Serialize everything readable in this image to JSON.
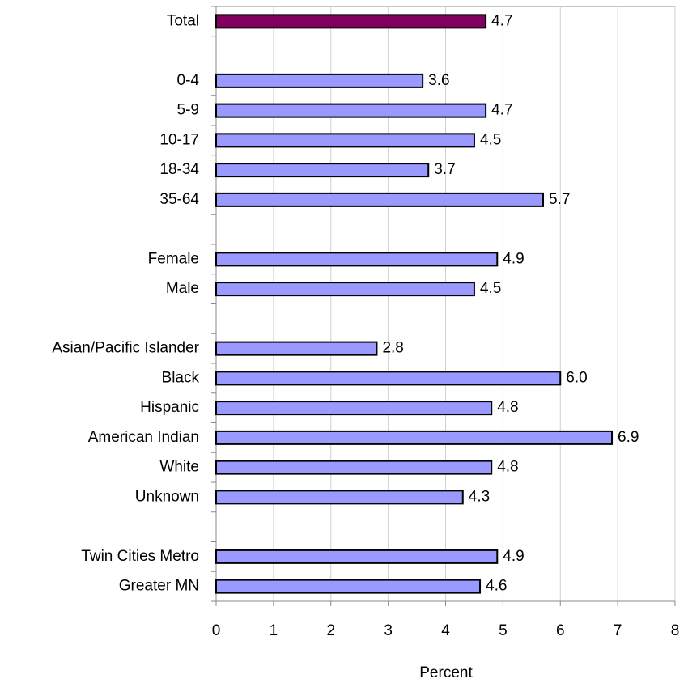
{
  "chart_data": {
    "type": "hbar",
    "x_label": "Percent",
    "categories": [
      "Total",
      null,
      "0-4",
      "5-9",
      "10-17",
      "18-34",
      "35-64",
      null,
      "Female",
      "Male",
      null,
      "Asian/Pacific Islander",
      "Black",
      "Hispanic",
      "American Indian",
      "White",
      "Unknown",
      null,
      "Twin Cities Metro",
      "Greater MN"
    ],
    "values": [
      4.7,
      null,
      3.6,
      4.7,
      4.5,
      3.7,
      5.7,
      null,
      4.9,
      4.5,
      null,
      2.8,
      6.0,
      4.8,
      6.9,
      4.8,
      4.3,
      null,
      4.9,
      4.6
    ],
    "value_labels": [
      "4.7",
      null,
      "3.6",
      "4.7",
      "4.5",
      "3.7",
      "5.7",
      null,
      "4.9",
      "4.5",
      null,
      "2.8",
      "6.0",
      "4.8",
      "6.9",
      "4.8",
      "4.3",
      null,
      "4.9",
      "4.6"
    ],
    "colors": [
      "#800060",
      null,
      "#9999ff",
      "#9999ff",
      "#9999ff",
      "#9999ff",
      "#9999ff",
      null,
      "#9999ff",
      "#9999ff",
      null,
      "#9999ff",
      "#9999ff",
      "#9999ff",
      "#9999ff",
      "#9999ff",
      "#9999ff",
      null,
      "#9999ff",
      "#9999ff"
    ],
    "xlim": [
      0,
      8
    ],
    "xticks": [
      0,
      1,
      2,
      3,
      4,
      5,
      6,
      7,
      8
    ],
    "grid": true
  }
}
